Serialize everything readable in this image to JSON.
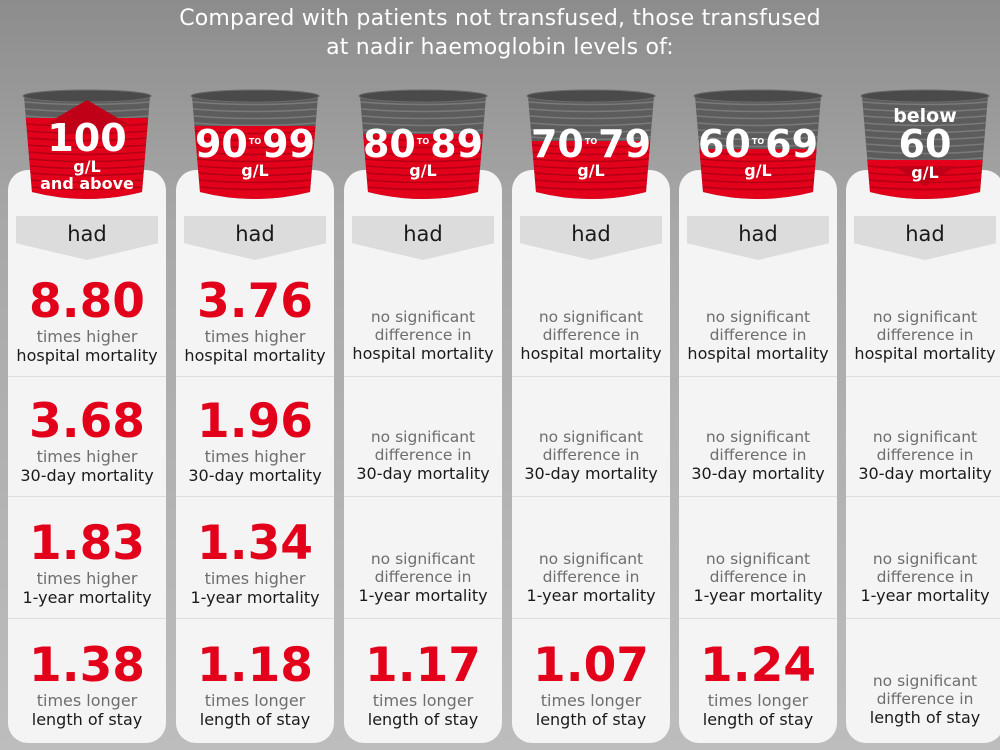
{
  "title": {
    "line1": "Compared with patients not transfused, those transfused",
    "line2": "at nadir haemoglobin levels of:"
  },
  "colors": {
    "red": "#e3001a",
    "dark_text": "#1a1a1a",
    "grey_text": "#6e6e6e",
    "panel": "#f4f4f4"
  },
  "had_label": "had",
  "rows": [
    {
      "measure": "hospital mortality"
    },
    {
      "measure": "30-day mortality"
    },
    {
      "measure": "1-year mortality"
    },
    {
      "measure": "length of stay"
    }
  ],
  "columns": [
    {
      "level_fill": 0.78,
      "arrow": "up-arrow-icon",
      "label": {
        "pre": "",
        "a": "100",
        "to": "",
        "b": "",
        "unit": "g/L",
        "extra": "and above"
      },
      "cells": [
        {
          "value": "8.80",
          "qualifier": "times higher",
          "measure": "hospital mortality"
        },
        {
          "value": "3.68",
          "qualifier": "times higher",
          "measure": "30-day mortality"
        },
        {
          "value": "1.83",
          "qualifier": "times higher",
          "measure": "1-year mortality"
        },
        {
          "value": "1.38",
          "qualifier": "times longer",
          "measure": "length of stay"
        }
      ]
    },
    {
      "level_fill": 0.7,
      "arrow": "",
      "label": {
        "pre": "",
        "a": "90",
        "to": "TO",
        "b": "99",
        "unit": "g/L",
        "extra": ""
      },
      "cells": [
        {
          "value": "3.76",
          "qualifier": "times higher",
          "measure": "hospital mortality"
        },
        {
          "value": "1.96",
          "qualifier": "times higher",
          "measure": "30-day mortality"
        },
        {
          "value": "1.34",
          "qualifier": "times higher",
          "measure": "1-year mortality"
        },
        {
          "value": "1.18",
          "qualifier": "times longer",
          "measure": "length of stay"
        }
      ]
    },
    {
      "level_fill": 0.62,
      "arrow": "",
      "label": {
        "pre": "",
        "a": "80",
        "to": "TO",
        "b": "89",
        "unit": "g/L",
        "extra": ""
      },
      "cells": [
        {
          "ns1": "no significant",
          "ns2": "difference in",
          "measure": "hospital mortality"
        },
        {
          "ns1": "no significant",
          "ns2": "difference in",
          "measure": "30-day mortality"
        },
        {
          "ns1": "no significant",
          "ns2": "difference in",
          "measure": "1-year mortality"
        },
        {
          "value": "1.17",
          "qualifier": "times longer",
          "measure": "length of stay"
        }
      ]
    },
    {
      "level_fill": 0.55,
      "arrow": "",
      "label": {
        "pre": "",
        "a": "70",
        "to": "TO",
        "b": "79",
        "unit": "g/L",
        "extra": ""
      },
      "cells": [
        {
          "ns1": "no significant",
          "ns2": "difference in",
          "measure": "hospital mortality"
        },
        {
          "ns1": "no significant",
          "ns2": "difference in",
          "measure": "30-day mortality"
        },
        {
          "ns1": "no significant",
          "ns2": "difference in",
          "measure": "1-year mortality"
        },
        {
          "value": "1.07",
          "qualifier": "times longer",
          "measure": "length of stay"
        }
      ]
    },
    {
      "level_fill": 0.47,
      "arrow": "",
      "label": {
        "pre": "",
        "a": "60",
        "to": "TO",
        "b": "69",
        "unit": "g/L",
        "extra": ""
      },
      "cells": [
        {
          "ns1": "no significant",
          "ns2": "difference in",
          "measure": "hospital mortality"
        },
        {
          "ns1": "no significant",
          "ns2": "difference in",
          "measure": "30-day mortality"
        },
        {
          "ns1": "no significant",
          "ns2": "difference in",
          "measure": "1-year mortality"
        },
        {
          "value": "1.24",
          "qualifier": "times longer",
          "measure": "length of stay"
        }
      ]
    },
    {
      "level_fill": 0.36,
      "arrow": "down-arrow-icon",
      "label": {
        "pre": "below",
        "a": "60",
        "to": "",
        "b": "",
        "unit": "g/L",
        "extra": ""
      },
      "cells": [
        {
          "ns1": "no significant",
          "ns2": "difference in",
          "measure": "hospital mortality"
        },
        {
          "ns1": "no significant",
          "ns2": "difference in",
          "measure": "30-day mortality"
        },
        {
          "ns1": "no significant",
          "ns2": "difference in",
          "measure": "1-year mortality"
        },
        {
          "ns1": "no significant",
          "ns2": "difference in",
          "measure": "length of stay"
        }
      ]
    }
  ]
}
